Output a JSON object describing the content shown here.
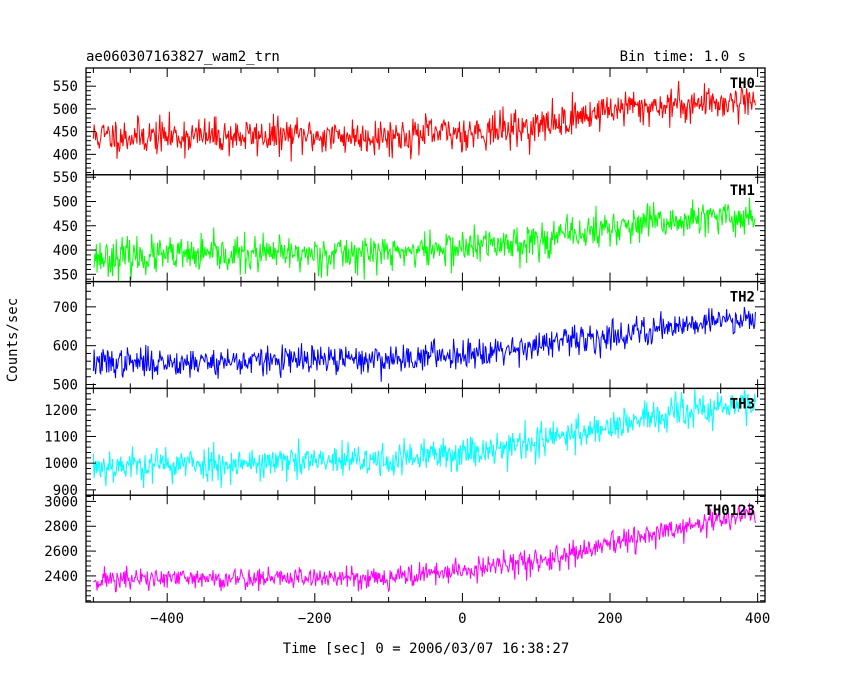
{
  "chart_data": {
    "type": "line",
    "title": "ae060307163827_wam2_trn",
    "subtitle": "Bin time: 1.0 s",
    "xlabel": "Time [sec] 0 = 2006/03/07 16:38:27",
    "ylabel": "Counts/sec",
    "xlim": [
      -510,
      410
    ],
    "x_ticks": [
      -400,
      -200,
      0,
      200,
      400
    ],
    "x_tick_labels": [
      "−400",
      "−200",
      "0",
      "200",
      "400"
    ],
    "x_start": -500,
    "x_end": 397,
    "x_step": 1,
    "grid": false,
    "panels": [
      {
        "name": "TH0",
        "color": "#ff0000",
        "ylim": [
          355,
          590
        ],
        "y_ticks": [
          400,
          450,
          500,
          550
        ],
        "trend": [
          [
            -500,
            440
          ],
          [
            -100,
            440
          ],
          [
            0,
            448
          ],
          [
            100,
            460
          ],
          [
            150,
            480
          ],
          [
            200,
            500
          ],
          [
            300,
            510
          ],
          [
            397,
            520
          ]
        ],
        "noise": 32,
        "seed": 11
      },
      {
        "name": "TH1",
        "color": "#00ff00",
        "ylim": [
          335,
          555
        ],
        "y_ticks": [
          350,
          400,
          450,
          500,
          550
        ],
        "trend": [
          [
            -500,
            385
          ],
          [
            -100,
            395
          ],
          [
            0,
            405
          ],
          [
            100,
            420
          ],
          [
            200,
            445
          ],
          [
            300,
            460
          ],
          [
            397,
            470
          ]
        ],
        "noise": 30,
        "seed": 23
      },
      {
        "name": "TH2",
        "color": "#0000ff",
        "ylim": [
          490,
          765
        ],
        "y_ticks": [
          500,
          600,
          700
        ],
        "trend": [
          [
            -500,
            555
          ],
          [
            -100,
            565
          ],
          [
            0,
            580
          ],
          [
            100,
            600
          ],
          [
            200,
            625
          ],
          [
            300,
            655
          ],
          [
            397,
            675
          ]
        ],
        "noise": 30,
        "seed": 37
      },
      {
        "name": "TH3",
        "color": "#00ffff",
        "ylim": [
          880,
          1280
        ],
        "y_ticks": [
          900,
          1000,
          1100,
          1200
        ],
        "trend": [
          [
            -500,
            990
          ],
          [
            -100,
            1010
          ],
          [
            0,
            1040
          ],
          [
            100,
            1080
          ],
          [
            200,
            1140
          ],
          [
            300,
            1190
          ],
          [
            397,
            1225
          ]
        ],
        "noise": 52,
        "seed": 53
      },
      {
        "name": "TH0123",
        "color": "#ff00ff",
        "ylim": [
          2190,
          3050
        ],
        "y_ticks": [
          2400,
          2600,
          2800,
          3000
        ],
        "trend": [
          [
            -500,
            2370
          ],
          [
            -100,
            2390
          ],
          [
            0,
            2440
          ],
          [
            100,
            2520
          ],
          [
            150,
            2570
          ],
          [
            200,
            2650
          ],
          [
            300,
            2790
          ],
          [
            397,
            2910
          ]
        ],
        "noise": 75,
        "seed": 71
      }
    ]
  }
}
